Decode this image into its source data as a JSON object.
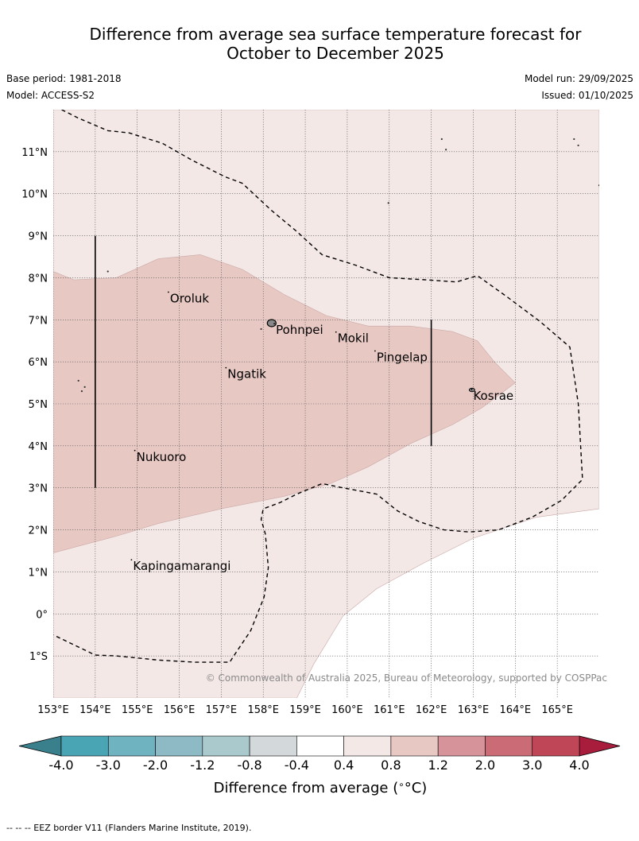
{
  "title_line1": "Difference from average sea surface temperature forecast for",
  "title_line2": "October to December 2025",
  "base_period": "Base period: 1981-2018",
  "model": "Model: ACCESS-S2",
  "model_run": "Model run: 29/09/2025",
  "issued": "Issued: 01/10/2025",
  "copyright": "© Commonwealth of Australia 2025, Bureau of Meteorology, supported by COSPPac",
  "footnote": "-- -- -- EEZ border V11 (Flanders Marine Institute, 2019).",
  "map": {
    "lon_range": [
      153,
      166
    ],
    "lat_range": [
      -2,
      12
    ],
    "lon_ticks": [
      {
        "lon": 153,
        "label": "153°E"
      },
      {
        "lon": 154,
        "label": "154°E"
      },
      {
        "lon": 155,
        "label": "155°E"
      },
      {
        "lon": 156,
        "label": "156°E"
      },
      {
        "lon": 157,
        "label": "157°E"
      },
      {
        "lon": 158,
        "label": "158°E"
      },
      {
        "lon": 159,
        "label": "159°E"
      },
      {
        "lon": 160,
        "label": "160°E"
      },
      {
        "lon": 161,
        "label": "161°E"
      },
      {
        "lon": 162,
        "label": "162°E"
      },
      {
        "lon": 163,
        "label": "163°E"
      },
      {
        "lon": 164,
        "label": "164°E"
      },
      {
        "lon": 165,
        "label": "165°E"
      }
    ],
    "lat_ticks": [
      {
        "lat": 11,
        "label": "11°N"
      },
      {
        "lat": 10,
        "label": "10°N"
      },
      {
        "lat": 9,
        "label": "9°N"
      },
      {
        "lat": 8,
        "label": "8°N"
      },
      {
        "lat": 7,
        "label": "7°N"
      },
      {
        "lat": 6,
        "label": "6°N"
      },
      {
        "lat": 5,
        "label": "5°N"
      },
      {
        "lat": 4,
        "label": "4°N"
      },
      {
        "lat": 3,
        "label": "3°N"
      },
      {
        "lat": 2,
        "label": "2°N"
      },
      {
        "lat": 1,
        "label": "1°N"
      },
      {
        "lat": 0,
        "label": "0°"
      },
      {
        "lat": -1,
        "label": "1°S"
      }
    ],
    "places": [
      {
        "name": "Oroluk",
        "lon": 155.78,
        "lat": 7.62
      },
      {
        "name": "Pohnpei",
        "lon": 158.3,
        "lat": 6.87
      },
      {
        "name": "Mokil",
        "lon": 159.77,
        "lat": 6.67
      },
      {
        "name": "Pingelap",
        "lon": 160.7,
        "lat": 6.22
      },
      {
        "name": "Ngatik",
        "lon": 157.15,
        "lat": 5.82
      },
      {
        "name": "Kosrae",
        "lon": 163.0,
        "lat": 5.3
      },
      {
        "name": "Nukuoro",
        "lon": 154.98,
        "lat": 3.85
      },
      {
        "name": "Kapingamarangi",
        "lon": 154.9,
        "lat": 1.25
      }
    ],
    "region_boundaries": [
      {
        "lon": 154,
        "lat_from": 3,
        "lat_to": 9
      },
      {
        "lon": 162,
        "lat_from": 4,
        "lat_to": 7
      }
    ],
    "anomaly_fields": [
      {
        "category": "0.4 to 0.8",
        "color": "#f4e8e7",
        "polygon": [
          [
            153,
            12
          ],
          [
            166,
            12
          ],
          [
            166,
            2.5
          ],
          [
            164.5,
            2.3
          ],
          [
            163,
            1.8
          ],
          [
            161.8,
            1.2
          ],
          [
            160.7,
            0.6
          ],
          [
            159.9,
            -0.05
          ],
          [
            159.2,
            -1.2
          ],
          [
            158.8,
            -2
          ],
          [
            153,
            -2
          ]
        ]
      },
      {
        "category": "0.8 to 1.2",
        "color": "#e8c8c3",
        "polygon": [
          [
            153,
            8.15
          ],
          [
            153.5,
            7.95
          ],
          [
            154.5,
            8.0
          ],
          [
            155.5,
            8.45
          ],
          [
            156.5,
            8.55
          ],
          [
            157.5,
            8.2
          ],
          [
            158.5,
            7.6
          ],
          [
            159.5,
            7.1
          ],
          [
            160.5,
            6.85
          ],
          [
            161.5,
            6.85
          ],
          [
            162.5,
            6.72
          ],
          [
            163.1,
            6.5
          ],
          [
            163.5,
            6.0
          ],
          [
            164,
            5.5
          ],
          [
            163.2,
            4.9
          ],
          [
            162.5,
            4.5
          ],
          [
            161.5,
            4.05
          ],
          [
            160.5,
            3.5
          ],
          [
            159.6,
            3.1
          ],
          [
            158.5,
            2.8
          ],
          [
            157,
            2.5
          ],
          [
            155.5,
            2.15
          ],
          [
            154.5,
            1.85
          ],
          [
            153,
            1.45
          ]
        ]
      }
    ],
    "eez_lines": [
      [
        [
          153.2,
          12
        ],
        [
          153.6,
          11.8
        ],
        [
          154.3,
          11.5
        ],
        [
          154.8,
          11.45
        ],
        [
          155.6,
          11.2
        ],
        [
          156.3,
          10.8
        ],
        [
          157.1,
          10.4
        ],
        [
          157.5,
          10.25
        ],
        [
          158.2,
          9.6
        ],
        [
          158.8,
          9.1
        ],
        [
          159.4,
          8.55
        ],
        [
          160.2,
          8.3
        ],
        [
          161,
          8.0
        ],
        [
          161.9,
          7.95
        ],
        [
          162.6,
          7.9
        ],
        [
          163.1,
          8.05
        ],
        [
          163.8,
          7.55
        ],
        [
          164.6,
          6.95
        ],
        [
          165.3,
          6.35
        ],
        [
          165.5,
          5.0
        ],
        [
          165.6,
          3.2
        ],
        [
          165.1,
          2.7
        ],
        [
          164.4,
          2.3
        ],
        [
          163.6,
          2.0
        ],
        [
          162.9,
          1.95
        ],
        [
          162.3,
          2.0
        ],
        [
          161.7,
          2.2
        ],
        [
          161.2,
          2.45
        ],
        [
          160.7,
          2.85
        ],
        [
          159.9,
          3.0
        ],
        [
          159.4,
          3.1
        ],
        [
          158.8,
          2.85
        ],
        [
          158.4,
          2.65
        ],
        [
          158.0,
          2.5
        ],
        [
          157.95,
          2.25
        ],
        [
          158.05,
          1.9
        ],
        [
          158.12,
          1.1
        ],
        [
          158.02,
          0.4
        ],
        [
          157.7,
          -0.4
        ],
        [
          157.3,
          -1.0
        ],
        [
          157.2,
          -1.15
        ],
        [
          156.4,
          -1.15
        ],
        [
          155.5,
          -1.1
        ],
        [
          154.5,
          -1.0
        ],
        [
          154.0,
          -0.98
        ],
        [
          153,
          -0.5
        ]
      ]
    ],
    "islets": [
      {
        "lon": 154.3,
        "lat": 8.15
      },
      {
        "lon": 153.6,
        "lat": 5.55
      },
      {
        "lon": 153.75,
        "lat": 5.4
      },
      {
        "lon": 153.68,
        "lat": 5.3
      },
      {
        "lon": 162.25,
        "lat": 11.3
      },
      {
        "lon": 162.35,
        "lat": 11.05
      },
      {
        "lon": 165.4,
        "lat": 11.3
      },
      {
        "lon": 165.5,
        "lat": 11.15
      },
      {
        "lon": 160.98,
        "lat": 9.78
      },
      {
        "lon": 166,
        "lat": 10.2
      },
      {
        "lon": 157.95,
        "lat": 6.78
      }
    ]
  },
  "colorbar": {
    "label": "Difference from average (",
    "label_unit": "°C)",
    "tick_labels": [
      "-4.0",
      "-3.0",
      "-2.0",
      "-1.2",
      "-0.8",
      "-0.4",
      "0.4",
      "0.8",
      "1.2",
      "2.0",
      "3.0",
      "4.0"
    ],
    "under_color": "#3a7f8c",
    "over_color": "#a81d3c",
    "colors": [
      "#49a4b4",
      "#6fb2c0",
      "#8dbac5",
      "#aac9cc",
      "#d3d9da",
      "#ffffff",
      "#f4e8e7",
      "#e8c8c3",
      "#d7939a",
      "#cb6b75",
      "#bf4656"
    ]
  }
}
